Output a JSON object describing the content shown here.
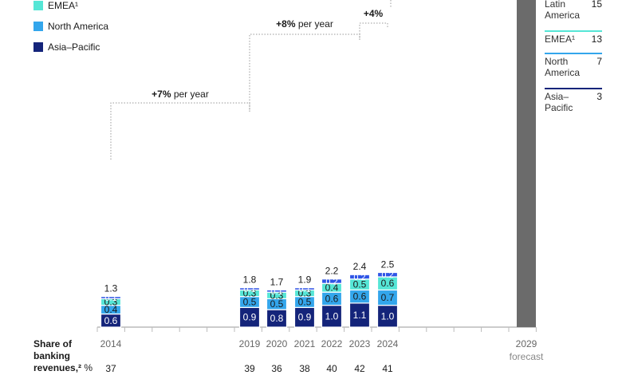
{
  "chart_data": {
    "type": "bar",
    "stacked": true,
    "categories": [
      "2014",
      "2019",
      "2020",
      "2021",
      "2022",
      "2023",
      "2024",
      "2029"
    ],
    "forecast_label": "forecast",
    "series": [
      {
        "name": "Asia–Pacific",
        "color": "#14247a",
        "values": [
          0.6,
          0.9,
          0.8,
          0.9,
          1.0,
          1.1,
          1.0,
          null
        ]
      },
      {
        "name": "North America",
        "color": "#33a6ec",
        "values": [
          0.4,
          0.5,
          0.5,
          0.5,
          0.6,
          0.6,
          0.7,
          null
        ]
      },
      {
        "name": "EMEA¹",
        "color": "#55e6d6",
        "values": [
          0.3,
          0.3,
          0.3,
          0.3,
          0.4,
          0.5,
          0.6,
          null
        ]
      },
      {
        "name": "Latin America",
        "color": "#2f55e6",
        "values": [
          0.1,
          0.1,
          0.1,
          0.1,
          0.2,
          0.2,
          0.2,
          null
        ]
      }
    ],
    "totals": [
      "1.3",
      "1.8",
      "1.7",
      "1.9",
      "2.2",
      "2.4",
      "2.5",
      ""
    ],
    "legend_labels": [
      "EMEA¹",
      "North America",
      "Asia–Pacific"
    ],
    "growth_annotations": [
      {
        "bold": "+7%",
        "text": " per year"
      },
      {
        "bold": "+8%",
        "text": " per year"
      },
      {
        "bold": "+4%",
        "text": ""
      }
    ],
    "side_panel": [
      {
        "name_lines": [
          "Latin",
          "America"
        ],
        "value": "15"
      },
      {
        "name_lines": [
          "EMEA¹"
        ],
        "value": "13"
      },
      {
        "name_lines": [
          "North",
          "America"
        ],
        "value": "7"
      },
      {
        "name_lines": [
          "Asia–",
          "Pacific"
        ],
        "value": "3"
      }
    ],
    "share_row": {
      "label_lines": [
        "Share of",
        "banking",
        "revenues,²"
      ],
      "unit": "%",
      "values": [
        "37",
        "39",
        "36",
        "38",
        "40",
        "42",
        "41",
        ""
      ]
    },
    "forecast_bar_color": "#6b6b6b"
  }
}
